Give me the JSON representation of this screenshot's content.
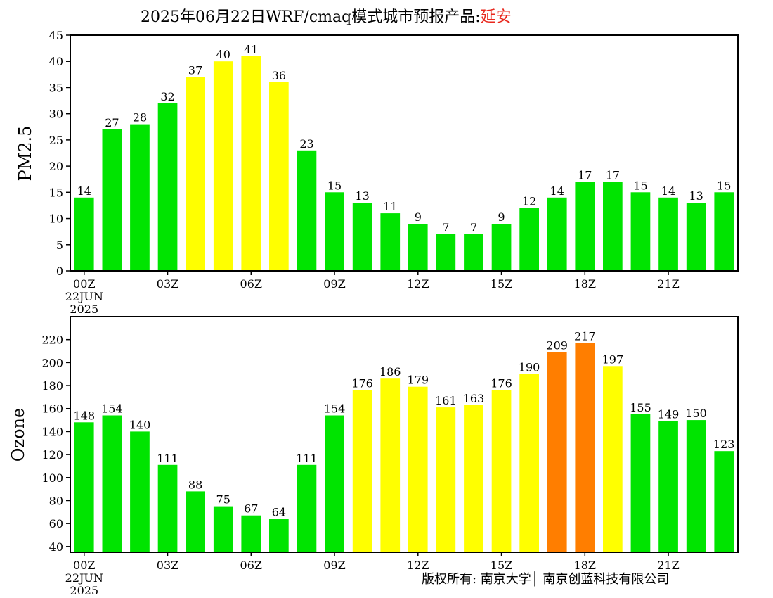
{
  "header": {
    "title_main": "2025年06月22日WRF/cmaq模式城市预报产品:",
    "title_city": "延安"
  },
  "footer": {
    "credit": "版权所有: 南京大学│ 南京创蓝科技有限公司"
  },
  "chart_data": [
    {
      "type": "bar",
      "ylabel": "PM2.5",
      "ylim": [
        0,
        45
      ],
      "yticks": [
        0,
        5,
        10,
        15,
        20,
        25,
        30,
        35,
        40,
        45
      ],
      "grid": false,
      "x_tick_labels": [
        {
          "index": 0,
          "label": "00Z",
          "extra": [
            "22JUN",
            "2025"
          ]
        },
        {
          "index": 3,
          "label": "03Z"
        },
        {
          "index": 6,
          "label": "06Z"
        },
        {
          "index": 9,
          "label": "09Z"
        },
        {
          "index": 12,
          "label": "12Z"
        },
        {
          "index": 15,
          "label": "15Z"
        },
        {
          "index": 18,
          "label": "18Z"
        },
        {
          "index": 21,
          "label": "21Z"
        }
      ],
      "values": [
        14,
        27,
        28,
        32,
        37,
        40,
        41,
        36,
        23,
        15,
        13,
        11,
        9,
        7,
        7,
        9,
        12,
        14,
        17,
        17,
        15,
        14,
        13,
        15
      ],
      "bar_colors": [
        "#00e400",
        "#00e400",
        "#00e400",
        "#00e400",
        "#ffff00",
        "#ffff00",
        "#ffff00",
        "#ffff00",
        "#00e400",
        "#00e400",
        "#00e400",
        "#00e400",
        "#00e400",
        "#00e400",
        "#00e400",
        "#00e400",
        "#00e400",
        "#00e400",
        "#00e400",
        "#00e400",
        "#00e400",
        "#00e400",
        "#00e400",
        "#00e400"
      ]
    },
    {
      "type": "bar",
      "ylabel": "Ozone",
      "ylim": [
        35,
        240
      ],
      "yticks": [
        40,
        60,
        80,
        100,
        120,
        140,
        160,
        180,
        200,
        220
      ],
      "grid": false,
      "x_tick_labels": [
        {
          "index": 0,
          "label": "00Z",
          "extra": [
            "22JUN",
            "2025"
          ]
        },
        {
          "index": 3,
          "label": "03Z"
        },
        {
          "index": 6,
          "label": "06Z"
        },
        {
          "index": 9,
          "label": "09Z"
        },
        {
          "index": 12,
          "label": "12Z"
        },
        {
          "index": 15,
          "label": "15Z"
        },
        {
          "index": 18,
          "label": "18Z"
        },
        {
          "index": 21,
          "label": "21Z"
        }
      ],
      "values": [
        148,
        154,
        140,
        111,
        88,
        75,
        67,
        64,
        111,
        154,
        176,
        186,
        179,
        161,
        163,
        176,
        190,
        209,
        217,
        197,
        155,
        149,
        150,
        123
      ],
      "bar_colors": [
        "#00e400",
        "#00e400",
        "#00e400",
        "#00e400",
        "#00e400",
        "#00e400",
        "#00e400",
        "#00e400",
        "#00e400",
        "#00e400",
        "#ffff00",
        "#ffff00",
        "#ffff00",
        "#ffff00",
        "#ffff00",
        "#ffff00",
        "#ffff00",
        "#ff7e00",
        "#ff7e00",
        "#ffff00",
        "#00e400",
        "#00e400",
        "#00e400",
        "#00e400"
      ]
    }
  ]
}
